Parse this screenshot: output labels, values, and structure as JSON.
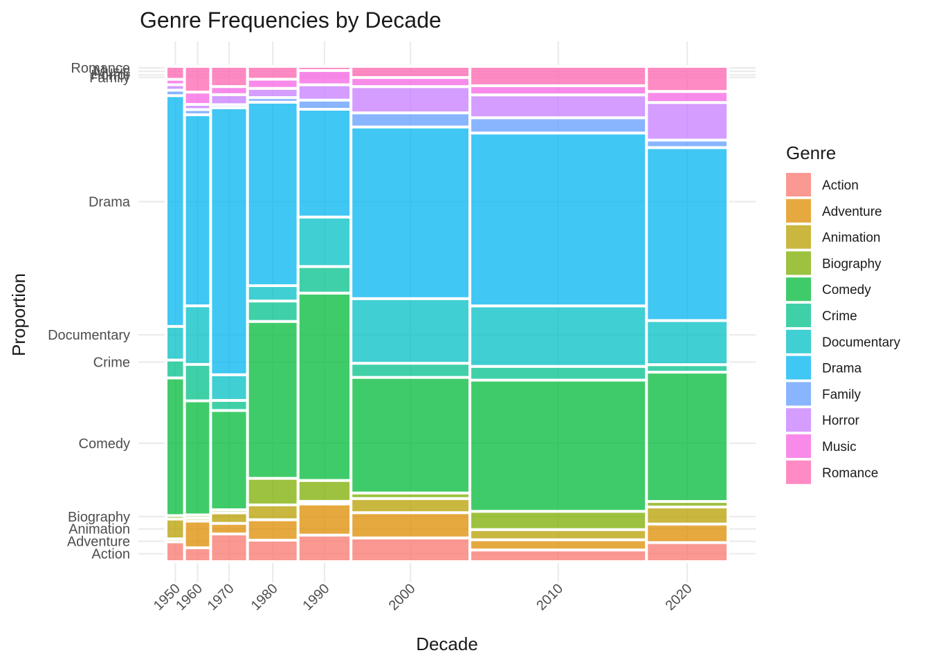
{
  "chart_data": {
    "type": "mosaic",
    "title": "Genre Frequencies by Decade",
    "xlabel": "Decade",
    "ylabel": "Proportion",
    "legend_title": "Genre",
    "legend_position": "right",
    "grid": true,
    "ylim": [
      0,
      1
    ],
    "genres": [
      "Action",
      "Adventure",
      "Animation",
      "Biography",
      "Comedy",
      "Crime",
      "Documentary",
      "Drama",
      "Family",
      "Horror",
      "Music",
      "Romance"
    ],
    "colors": {
      "Action": "#F8766D",
      "Adventure": "#DE8C00",
      "Animation": "#B79F00",
      "Biography": "#7CAE00",
      "Comedy": "#00BA38",
      "Crime": "#00C08B",
      "Documentary": "#00BFC4",
      "Drama": "#00B4F0",
      "Family": "#619CFF",
      "Horror": "#C77CFF",
      "Music": "#F564E3",
      "Romance": "#FF64B0"
    },
    "y_ticks": [
      {
        "label": "Action",
        "value": 0.016
      },
      {
        "label": "Adventure",
        "value": 0.041
      },
      {
        "label": "Animation",
        "value": 0.066
      },
      {
        "label": "Biography",
        "value": 0.091
      },
      {
        "label": "Comedy",
        "value": 0.239
      },
      {
        "label": "Crime",
        "value": 0.403
      },
      {
        "label": "Documentary",
        "value": 0.458
      },
      {
        "label": "Drama",
        "value": 0.727
      },
      {
        "label": "Family",
        "value": 0.978
      },
      {
        "label": "Horror",
        "value": 0.983
      },
      {
        "label": "Music",
        "value": 0.99
      },
      {
        "label": "Romance",
        "value": 0.997
      }
    ],
    "decades": [
      {
        "label": "1950",
        "width": 0.031,
        "proportions": {
          "Action": 0.04,
          "Adventure": 0.006,
          "Animation": 0.04,
          "Biography": 0.007,
          "Comedy": 0.278,
          "Crime": 0.036,
          "Documentary": 0.068,
          "Drama": 0.466,
          "Family": 0.011,
          "Horror": 0.011,
          "Music": 0.011,
          "Romance": 0.026
        }
      },
      {
        "label": "1960",
        "width": 0.044,
        "proportions": {
          "Action": 0.027,
          "Adventure": 0.052,
          "Animation": 0.006,
          "Biography": 0.006,
          "Comedy": 0.222,
          "Crime": 0.071,
          "Documentary": 0.114,
          "Drama": 0.372,
          "Family": 0.01,
          "Horror": 0.01,
          "Music": 0.024,
          "Romance": 0.05
        }
      },
      {
        "label": "1970",
        "width": 0.062,
        "proportions": {
          "Action": 0.055,
          "Adventure": 0.021,
          "Animation": 0.021,
          "Biography": 0.006,
          "Comedy": 0.197,
          "Crime": 0.02,
          "Documentary": 0.051,
          "Drama": 0.53,
          "Family": 0.006,
          "Horror": 0.02,
          "Music": 0.016,
          "Romance": 0.04
        }
      },
      {
        "label": "1980",
        "width": 0.085,
        "proportions": {
          "Action": 0.042,
          "Adventure": 0.04,
          "Animation": 0.029,
          "Biography": 0.052,
          "Comedy": 0.307,
          "Crime": 0.04,
          "Documentary": 0.03,
          "Drama": 0.359,
          "Family": 0.009,
          "Horror": 0.018,
          "Music": 0.018,
          "Romance": 0.025
        }
      },
      {
        "label": "1990",
        "width": 0.089,
        "proportions": {
          "Action": 0.052,
          "Adventure": 0.061,
          "Animation": 0.005,
          "Biography": 0.041,
          "Comedy": 0.367,
          "Crime": 0.052,
          "Documentary": 0.097,
          "Drama": 0.211,
          "Family": 0.018,
          "Horror": 0.03,
          "Music": 0.028,
          "Romance": 0.008
        }
      },
      {
        "label": "2000",
        "width": 0.2,
        "proportions": {
          "Action": 0.047,
          "Adventure": 0.05,
          "Animation": 0.028,
          "Biography": 0.011,
          "Comedy": 0.229,
          "Crime": 0.028,
          "Documentary": 0.128,
          "Drama": 0.34,
          "Family": 0.028,
          "Horror": 0.052,
          "Music": 0.018,
          "Romance": 0.022
        }
      },
      {
        "label": "2010",
        "width": 0.297,
        "proportions": {
          "Action": 0.023,
          "Adventure": 0.02,
          "Animation": 0.02,
          "Biography": 0.036,
          "Comedy": 0.258,
          "Crime": 0.027,
          "Documentary": 0.119,
          "Drama": 0.34,
          "Family": 0.03,
          "Horror": 0.045,
          "Music": 0.018,
          "Romance": 0.038
        }
      },
      {
        "label": "2020",
        "width": 0.137,
        "proportions": {
          "Action": 0.038,
          "Adventure": 0.037,
          "Animation": 0.034,
          "Biography": 0.011,
          "Comedy": 0.258,
          "Crime": 0.015,
          "Documentary": 0.088,
          "Drama": 0.345,
          "Family": 0.015,
          "Horror": 0.075,
          "Music": 0.022,
          "Romance": 0.05
        }
      }
    ]
  }
}
